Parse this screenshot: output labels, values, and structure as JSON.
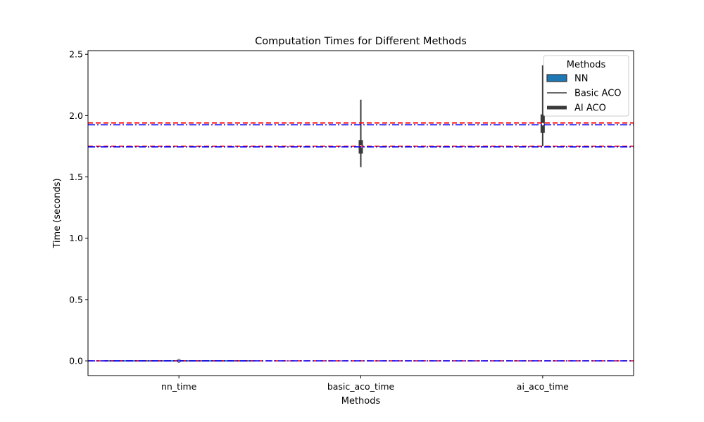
{
  "chart_data": {
    "type": "violin",
    "title": "Computation Times for Different Methods",
    "xlabel": "Methods",
    "ylabel": "Time (seconds)",
    "categories": [
      "nn_time",
      "basic_aco_time",
      "ai_aco_time"
    ],
    "ylim": [
      -0.12,
      2.53
    ],
    "yticks": [
      0.0,
      0.5,
      1.0,
      1.5,
      2.0,
      2.5
    ],
    "ytick_labels": [
      "0.0",
      "0.5",
      "1.0",
      "1.5",
      "2.0",
      "2.5"
    ],
    "grid": false,
    "legend": {
      "title": "Methods",
      "placement": "upper-right",
      "entries": [
        {
          "label": "NN",
          "style": "patch",
          "color": "#1f77b4"
        },
        {
          "label": "Basic ACO",
          "style": "line-thin",
          "color": "#3a3a3a"
        },
        {
          "label": "AI ACO",
          "style": "line-thick",
          "color": "#3a3a3a"
        }
      ]
    },
    "distributions": [
      {
        "category": "nn_time",
        "whisker_low": 0.0,
        "q1": 0.0,
        "median": 0.0,
        "q3": 0.0,
        "whisker_high": 0.0
      },
      {
        "category": "basic_aco_time",
        "whisker_low": 1.58,
        "q1": 1.69,
        "median": 1.75,
        "q3": 1.8,
        "whisker_high": 2.13
      },
      {
        "category": "ai_aco_time",
        "whisker_low": 1.75,
        "q1": 1.86,
        "median": 1.93,
        "q3": 2.01,
        "whisker_high": 2.41
      }
    ],
    "reference_lines": [
      {
        "y": 1.94,
        "color": "#ff0000",
        "style": "dashed"
      },
      {
        "y": 1.925,
        "color": "#0000ff",
        "style": "dashdot"
      },
      {
        "y": 1.75,
        "color": "#ff0000",
        "style": "dashed"
      },
      {
        "y": 1.745,
        "color": "#0000ff",
        "style": "dashdot"
      },
      {
        "y": 0.0,
        "color": "#ff0000",
        "style": "dashed"
      },
      {
        "y": 0.0,
        "color": "#0000ff",
        "style": "dashdot"
      }
    ],
    "colors": {
      "nn": "#1f77b4",
      "box": "#3a3a3a",
      "axis": "#000000"
    }
  }
}
